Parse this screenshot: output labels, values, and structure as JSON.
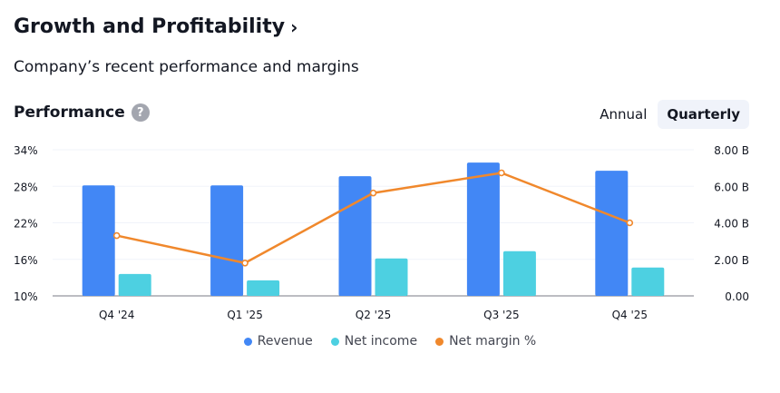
{
  "header": {
    "title": "Growth and Profitability",
    "title_chevron": "›",
    "subtitle": "Company’s recent performance and margins"
  },
  "performance": {
    "title": "Performance",
    "help_icon": "?",
    "toggle": [
      {
        "label": "Annual",
        "active": false
      },
      {
        "label": "Quarterly",
        "active": true
      }
    ]
  },
  "colors": {
    "revenue": "#4287f5",
    "net_income": "#4dd0e1",
    "net_margin": "#f0882c"
  },
  "chart_data": {
    "type": "bar",
    "categories": [
      "Q4 '24",
      "Q1 '25",
      "Q2 '25",
      "Q3 '25",
      "Q4 '25"
    ],
    "series": [
      {
        "name": "Revenue",
        "type": "bar",
        "axis": "right",
        "values": [
          6.05,
          6.05,
          6.55,
          7.3,
          6.85
        ]
      },
      {
        "name": "Net income",
        "type": "bar",
        "axis": "right",
        "values": [
          1.2,
          0.85,
          2.05,
          2.45,
          1.55
        ]
      },
      {
        "name": "Net margin %",
        "type": "line",
        "axis": "left",
        "values": [
          19.9,
          15.4,
          26.9,
          30.2,
          22.0
        ]
      }
    ],
    "left_axis": {
      "ticks": [
        "34%",
        "28%",
        "22%",
        "16%",
        "10%"
      ],
      "range": [
        10,
        34
      ]
    },
    "right_axis": {
      "ticks": [
        "8.00 B",
        "6.00 B",
        "4.00 B",
        "2.00 B",
        "0.00"
      ],
      "range": [
        0,
        8
      ]
    },
    "legend": [
      "Revenue",
      "Net income",
      "Net margin %"
    ],
    "legend_position": "bottom",
    "grid": true
  }
}
